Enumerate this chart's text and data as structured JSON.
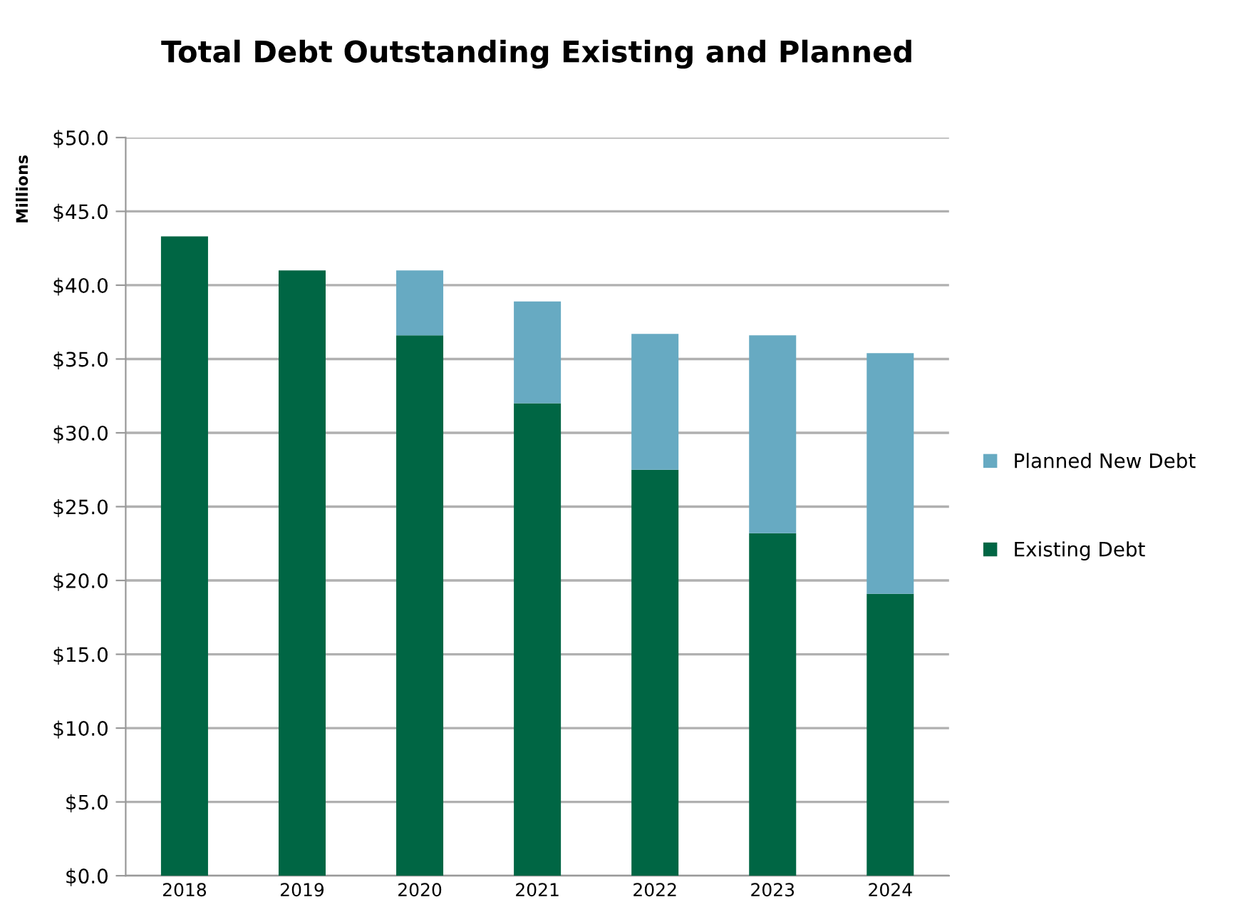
{
  "chart_data": {
    "type": "bar",
    "title": "Total Debt Outstanding Existing and Planned",
    "ylabel": "Millions",
    "categories": [
      "2018",
      "2019",
      "2020",
      "2021",
      "2022",
      "2023",
      "2024"
    ],
    "stacked": true,
    "series": [
      {
        "name": "Existing Debt",
        "color": "#006644",
        "values": [
          43.3,
          41.0,
          36.6,
          32.0,
          27.5,
          23.2,
          19.1
        ]
      },
      {
        "name": "Planned New Debt",
        "color": "#67aac2",
        "values": [
          null,
          null,
          4.4,
          6.9,
          9.2,
          13.4,
          16.3
        ]
      }
    ],
    "ylim": [
      0,
      50
    ],
    "yticks": [
      {
        "value": 0,
        "label": "$0.0"
      },
      {
        "value": 5,
        "label": "$5.0"
      },
      {
        "value": 10,
        "label": "$10.0"
      },
      {
        "value": 15,
        "label": "$15.0"
      },
      {
        "value": 20,
        "label": "$20.0"
      },
      {
        "value": 25,
        "label": "$25.0"
      },
      {
        "value": 30,
        "label": "$30.0"
      },
      {
        "value": 35,
        "label": "$35.0"
      },
      {
        "value": 40,
        "label": "$40.0"
      },
      {
        "value": 45,
        "label": "$45.0"
      },
      {
        "value": 50,
        "label": "$50.0"
      }
    ],
    "grid": "y",
    "legend": "right"
  }
}
